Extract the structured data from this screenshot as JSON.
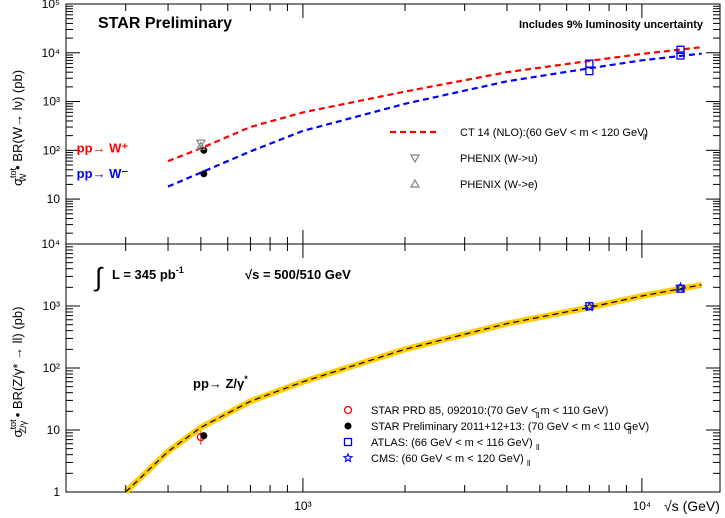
{
  "chart_data": [
    {
      "type": "line",
      "panel": "top",
      "title": "STAR Preliminary",
      "note": "Includes 9% luminosity uncertainty",
      "ylabel_parts": {
        "sigma": "σ",
        "sup": "tot",
        "sub": "W",
        "rest": " • BR(W→ lν) (pb)"
      },
      "xscale": "log",
      "yscale": "log",
      "xlim": [
        200,
        17000
      ],
      "ylim": [
        1.2,
        100000
      ],
      "yticks": [
        {
          "v": 10,
          "label": "10"
        },
        {
          "v": 100,
          "label": "10²"
        },
        {
          "v": 1000,
          "label": "10³"
        },
        {
          "v": 10000,
          "label": "10⁴"
        },
        {
          "v": 100000,
          "label": "10⁵"
        }
      ],
      "process_labels": [
        {
          "text": "pp→ W⁺",
          "color": "#ff0000",
          "x": 215,
          "y": 110
        },
        {
          "text": "pp→ W⁻",
          "color": "#0000ff",
          "x": 215,
          "y": 33
        }
      ],
      "series": [
        {
          "name": "CT 14 (NLO):(60 GeV < m_ll < 120 GeV)",
          "legend_label": "CT 14 (NLO):(60 GeV < m  < 120 GeV)",
          "color": "#ff0000",
          "dashed": true,
          "x": [
            400,
            500,
            700,
            1000,
            2000,
            4000,
            7000,
            10000,
            15000
          ],
          "y": [
            60,
            110,
            300,
            600,
            1600,
            4000,
            6800,
            9500,
            13000
          ]
        },
        {
          "name": "CT 14 (NLO) W-",
          "color": "#0000ff",
          "dashed": true,
          "x": [
            400,
            500,
            700,
            1000,
            2000,
            4000,
            7000,
            10000,
            15000
          ],
          "y": [
            18,
            35,
            95,
            250,
            900,
            2600,
            4800,
            7000,
            9600
          ]
        }
      ],
      "points": [
        {
          "name": "STAR W+",
          "marker": "filled-circle",
          "color": "#000000",
          "x": 510,
          "y": 100
        },
        {
          "name": "STAR W-",
          "marker": "filled-circle",
          "color": "#000000",
          "x": 510,
          "y": 33
        },
        {
          "name": "PHENIX (W->u)",
          "marker": "triangle-down",
          "color": "#808080",
          "x": 500,
          "y": 140
        },
        {
          "name": "PHENIX (W->e)",
          "marker": "triangle-up",
          "color": "#808080",
          "x": 500,
          "y": 120
        },
        {
          "name": "ATLAS W+ 7",
          "marker": "open-square",
          "color": "#0000ff",
          "x": 7000,
          "y": 6000
        },
        {
          "name": "ATLAS W- 7",
          "marker": "open-square",
          "color": "#0000ff",
          "x": 7000,
          "y": 4200
        },
        {
          "name": "ATLAS W+ 13",
          "marker": "open-square",
          "color": "#0000ff",
          "x": 13000,
          "y": 11500
        },
        {
          "name": "ATLAS W- 13",
          "marker": "open-square",
          "color": "#0000ff",
          "x": 13000,
          "y": 8800
        }
      ],
      "legend": [
        {
          "label": "CT 14 (NLO):(60 GeV < m  < 120 GeV)",
          "sub": "ll",
          "style": "red-dash"
        },
        {
          "label": "PHENIX (W->u)",
          "style": "triangle-down"
        },
        {
          "label": "PHENIX (W->e)",
          "style": "triangle-up"
        }
      ]
    },
    {
      "type": "line",
      "panel": "bottom",
      "xlabel": "√s (GeV)",
      "ylabel_parts": {
        "sigma": "σ",
        "sup": "tot",
        "sub": "Z/γ",
        "rest": " • BR(Z/γ* → ll) (pb)"
      },
      "xscale": "log",
      "yscale": "log",
      "xlim": [
        200,
        17000
      ],
      "ylim": [
        1,
        10000
      ],
      "xticks": [
        {
          "v": 1000,
          "label": "10³"
        },
        {
          "v": 10000,
          "label": "10⁴"
        }
      ],
      "yticks": [
        {
          "v": 1,
          "label": "1"
        },
        {
          "v": 10,
          "label": "10"
        },
        {
          "v": 100,
          "label": "10²"
        },
        {
          "v": 1000,
          "label": "10³"
        },
        {
          "v": 10000,
          "label": "10⁴"
        }
      ],
      "lumi_text": "L = 345 pb",
      "lumi_sup": "-1",
      "sqrt_s_text": "√s = 500/510 GeV",
      "process_label": "pp→ Z/γ",
      "process_sup": "*",
      "series": [
        {
          "name": "Theory Z/γ*",
          "color": "#000000",
          "band_color": "#ffcc00",
          "dashed": true,
          "x": [
            300,
            400,
            500,
            700,
            1000,
            2000,
            4000,
            7000,
            10000,
            15000
          ],
          "y": [
            1.0,
            4.5,
            11,
            29,
            60,
            200,
            520,
            950,
            1450,
            2200
          ]
        }
      ],
      "points": [
        {
          "name": "STAR PRD 85, 092010",
          "marker": "open-circle",
          "color": "#ff0000",
          "x": 500,
          "y": 7.7,
          "err": [
            5.8,
            9.6
          ]
        },
        {
          "name": "STAR Preliminary 2011+12+13",
          "marker": "filled-circle",
          "color": "#000000",
          "x": 510,
          "y": 8.1
        },
        {
          "name": "ATLAS 7",
          "marker": "open-square",
          "color": "#0000ff",
          "x": 7000,
          "y": 990
        },
        {
          "name": "ATLAS 13",
          "marker": "open-square",
          "color": "#0000ff",
          "x": 13000,
          "y": 1900
        },
        {
          "name": "CMS 7",
          "marker": "star",
          "color": "#0000ff",
          "x": 7000,
          "y": 970
        },
        {
          "name": "CMS 13",
          "marker": "star",
          "color": "#0000ff",
          "x": 13000,
          "y": 2000
        }
      ],
      "legend": [
        {
          "label": "STAR PRD 85, 092010:(70 GeV < m  < 110 GeV)",
          "sub": "ll",
          "marker": "open-circle",
          "color": "#ff0000"
        },
        {
          "label": "STAR Preliminary 2011+12+13: (70 GeV < m  < 110 GeV)",
          "sub": "ll",
          "marker": "filled-circle",
          "color": "#000000"
        },
        {
          "label": "ATLAS: (66 GeV < m  < 116 GeV)",
          "sub": "ll",
          "marker": "open-square",
          "color": "#0000ff"
        },
        {
          "label": "CMS: (60 GeV < m  < 120 GeV)",
          "sub": "ll",
          "marker": "star",
          "color": "#0000ff"
        }
      ]
    }
  ]
}
